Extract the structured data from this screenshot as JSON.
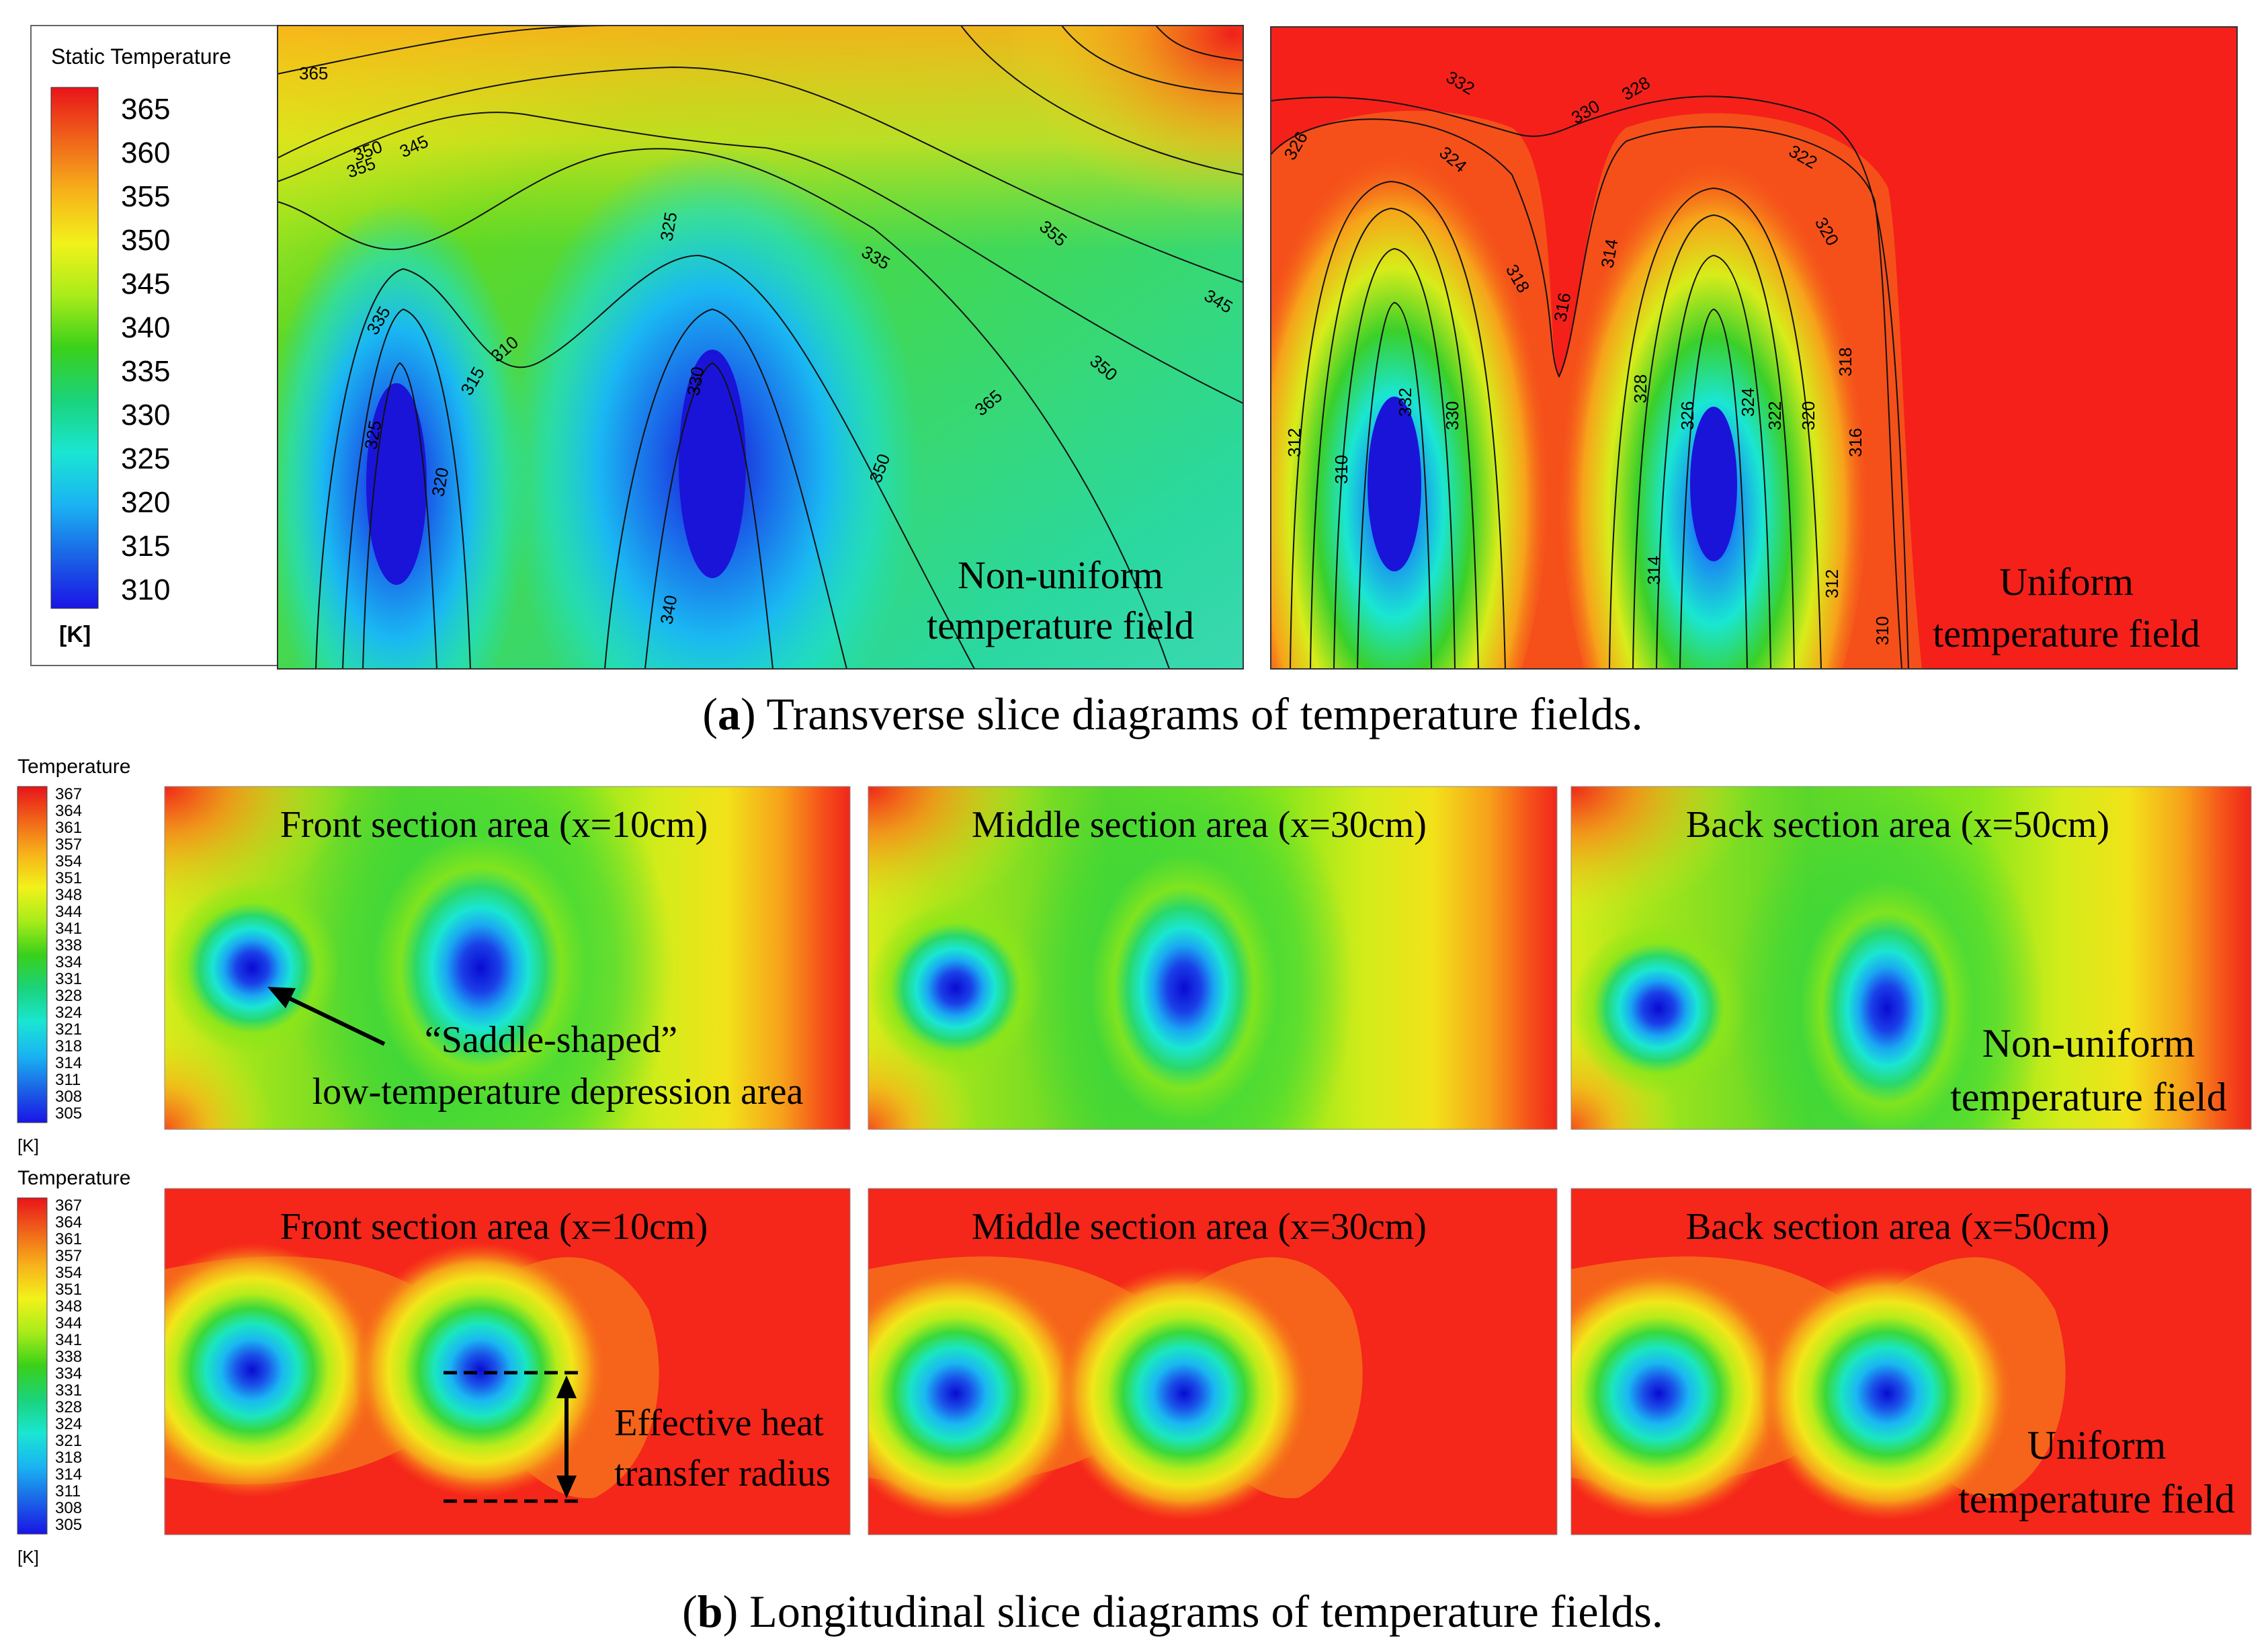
{
  "part_a": {
    "legend": {
      "title": "Static Temperature",
      "ticks": [
        "365",
        "360",
        "355",
        "350",
        "345",
        "340",
        "335",
        "330",
        "325",
        "320",
        "315",
        "310"
      ],
      "unit": "[K]"
    },
    "left_panel_label": [
      "Non-uniform",
      "temperature field"
    ],
    "right_panel_label": [
      "Uniform",
      "temperature field"
    ],
    "caption_letter": "a",
    "caption_text": "Transverse slice diagrams of temperature fields.",
    "left_contour_labels": [
      "365",
      "355",
      "350",
      "345",
      "335",
      "325",
      "320",
      "315",
      "310",
      "330",
      "340",
      "350"
    ],
    "right_contour_labels": [
      "332",
      "330",
      "328",
      "326",
      "324",
      "322",
      "320",
      "318",
      "316",
      "314",
      "312",
      "310"
    ]
  },
  "part_b": {
    "legend_top": {
      "title": "Temperature",
      "ticks": [
        "367",
        "364",
        "361",
        "357",
        "354",
        "351",
        "348",
        "344",
        "341",
        "338",
        "334",
        "331",
        "328",
        "324",
        "321",
        "318",
        "314",
        "311",
        "308",
        "305"
      ],
      "unit": "[K]"
    },
    "legend_bottom": {
      "title": "Temperature",
      "ticks": [
        "367",
        "364",
        "361",
        "357",
        "354",
        "351",
        "348",
        "344",
        "341",
        "338",
        "334",
        "331",
        "328",
        "324",
        "321",
        "318",
        "314",
        "311",
        "308",
        "305"
      ],
      "unit": "[K]"
    },
    "row1_titles": [
      "Front section area (x=10cm)",
      "Middle section area (x=30cm)",
      "Back section area (x=50cm)"
    ],
    "row2_titles": [
      "Front section area (x=10cm)",
      "Middle section area (x=30cm)",
      "Back section area (x=50cm)"
    ],
    "saddle_annotation": [
      "“Saddle-shaped”",
      "low-temperature depression area"
    ],
    "row1_field_label": [
      "Non-uniform",
      "temperature field"
    ],
    "radius_annotation": [
      "Effective heat",
      "transfer radius"
    ],
    "row2_field_label": [
      "Uniform",
      "temperature field"
    ],
    "caption_letter": "b",
    "caption_text": "Longitudinal slice diagrams of temperature fields."
  },
  "colors": {
    "hot": "#ff1a00",
    "cold": "#0000e0",
    "mid": "#33dd22"
  }
}
